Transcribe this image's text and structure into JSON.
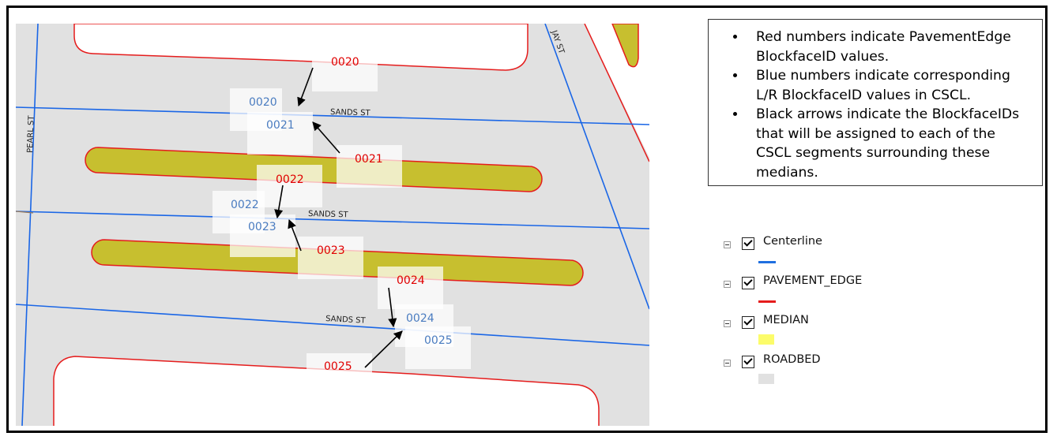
{
  "map": {
    "street_labels": [
      {
        "key": "sands1",
        "text": "SANDS ST"
      },
      {
        "key": "sands2",
        "text": "SANDS ST"
      },
      {
        "key": "sands3",
        "text": "SANDS ST"
      },
      {
        "key": "pearl",
        "text": "PEARL ST"
      },
      {
        "key": "jay",
        "text": "JAY ST"
      }
    ],
    "pavement_edge_ids": [
      {
        "key": "p0020",
        "text": "0020"
      },
      {
        "key": "p0021",
        "text": "0021"
      },
      {
        "key": "p0022",
        "text": "0022"
      },
      {
        "key": "p0023",
        "text": "0023"
      },
      {
        "key": "p0024",
        "text": "0024"
      },
      {
        "key": "p0025",
        "text": "0025"
      }
    ],
    "cscl_ids": [
      {
        "key": "c0020",
        "text": "0020"
      },
      {
        "key": "c0021",
        "text": "0021"
      },
      {
        "key": "c0022",
        "text": "0022"
      },
      {
        "key": "c0023",
        "text": "0023"
      },
      {
        "key": "c0024",
        "text": "0024"
      },
      {
        "key": "c0025",
        "text": "0025"
      }
    ],
    "colors": {
      "map_background": "#e1e1e1",
      "block": "#ffffff",
      "centerline": "#1a66e6",
      "pavement_edge": "#e51c1c",
      "median": "#c7bf2f",
      "pavement_label": "#e00000",
      "cscl_label": "#4a7cc0",
      "arrow": "#000000"
    }
  },
  "notes": {
    "items": [
      "Red numbers indicate PavementEdge BlockfaceID values.",
      "Blue numbers indicate corresponding L/R BlockfaceID values in CSCL.",
      "Black arrows indicate the BlockfaceIDs that will be assigned to each of the CSCL segments surrounding these medians."
    ]
  },
  "legend": {
    "items": [
      {
        "label": "Centerline",
        "symbol": "line",
        "color": "#1f6fe0"
      },
      {
        "label": "PAVEMENT_EDGE",
        "symbol": "line",
        "color": "#e51c1c"
      },
      {
        "label": "MEDIAN",
        "symbol": "fill",
        "color": "#fcfc6a"
      },
      {
        "label": "ROADBED",
        "symbol": "fill",
        "color": "#e1e1e1"
      }
    ]
  }
}
